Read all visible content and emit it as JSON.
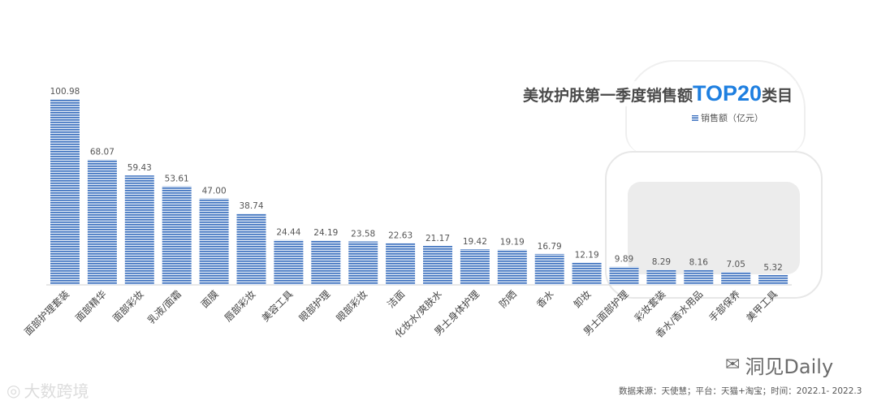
{
  "header": {
    "title_prefix": "美妆护肤第一季度销售额",
    "title_highlight": "TOP20",
    "title_suffix": "类目"
  },
  "legend": {
    "label": "销售额（亿元）"
  },
  "footer": {
    "source": "数据来源：天使慧；平台：天猫+淘宝；时间：2022.1- 2022.3"
  },
  "watermarks": {
    "left": "大数跨境",
    "left_icon": "eye-logo-icon",
    "right": "洞见Daily",
    "right_icon": "wechat-icon"
  },
  "colors": {
    "bar": "#3a6fbe",
    "bar_light": "#e2ebf6",
    "highlight": "#1e7fe0"
  },
  "chart_data": {
    "type": "bar",
    "categories": [
      "面部护理套装",
      "面部精华",
      "面部彩妆",
      "乳液/面霜",
      "面膜",
      "唇部彩妆",
      "美容工具",
      "眼部护理",
      "眼部彩妆",
      "洁面",
      "化妆水/爽肤水",
      "男士身体护理",
      "防晒",
      "香水",
      "卸妆",
      "男士面部护理",
      "彩妆套装",
      "香水/香水用品",
      "手部保养",
      "美甲工具"
    ],
    "values": [
      100.98,
      68.07,
      59.43,
      53.61,
      47.0,
      38.74,
      24.44,
      24.19,
      23.58,
      22.63,
      21.17,
      19.42,
      19.19,
      16.79,
      12.19,
      9.89,
      8.29,
      8.16,
      7.05,
      5.32
    ],
    "value_labels": [
      "100.98",
      "68.07",
      "59.43",
      "53.61",
      "47.00",
      "38.74",
      "24.44",
      "24.19",
      "23.58",
      "22.63",
      "21.17",
      "19.42",
      "19.19",
      "16.79",
      "12.19",
      "9.89",
      "8.29",
      "8.16",
      "7.05",
      "5.32"
    ],
    "series": [
      {
        "name": "销售额（亿元）"
      }
    ],
    "legend_position": "top-right",
    "grid": false
  }
}
